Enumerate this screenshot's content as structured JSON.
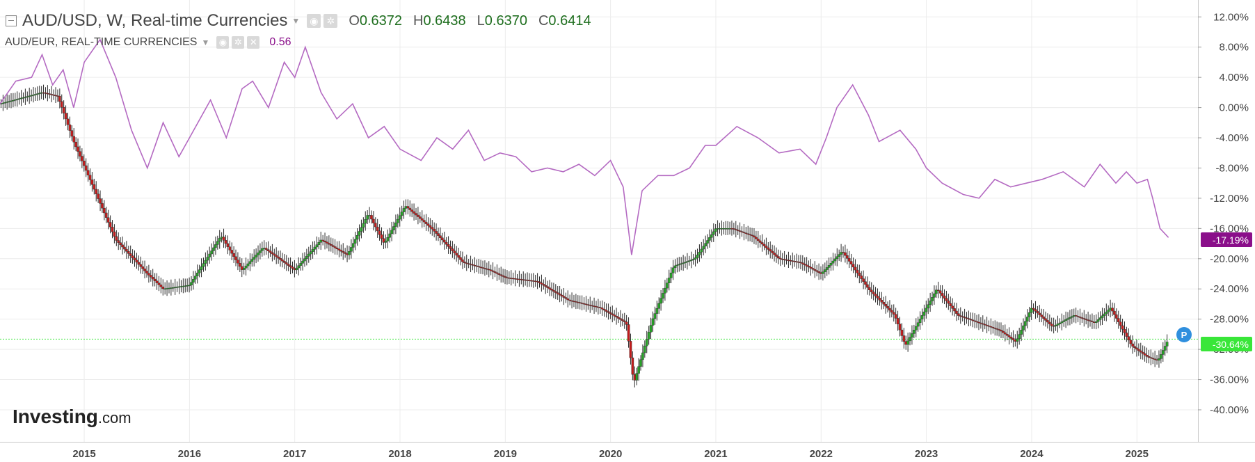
{
  "header": {
    "collapse_icon": "minus-square-icon",
    "main_symbol": "AUD/USD, W, Real-time Currencies",
    "ohlc": [
      {
        "key": "O",
        "value": "0.6372"
      },
      {
        "key": "H",
        "value": "0.6438"
      },
      {
        "key": "L",
        "value": "0.6370"
      },
      {
        "key": "C",
        "value": "0.6414"
      }
    ],
    "compare_symbol": "AUD/EUR, REAL-TIME CURRENCIES",
    "compare_value": "0.56",
    "icons": [
      "eye-icon",
      "gear-icon",
      "close-icon"
    ]
  },
  "brand": {
    "text_bold": "Investing",
    "text_light": ".com"
  },
  "colors": {
    "up": "#27a327",
    "down": "#c41c1c",
    "compare_line": "#b46ac2",
    "compare_badge": "#8a0f8a",
    "current_line": "#39e639",
    "ohlc_text": "#1e6e1e",
    "compare_value_text": "#8a0f8a",
    "grid": "#ececec",
    "pin": "#2f8fde"
  },
  "badges": {
    "compare": "-17.19%",
    "main": "-30.64%",
    "pin": "P"
  },
  "chart_data": {
    "type": "line",
    "title": "",
    "xlabel": "",
    "ylabel": "",
    "x_ticks": [
      "2015",
      "2016",
      "2017",
      "2018",
      "2019",
      "2020",
      "2021",
      "2022",
      "2023",
      "2024",
      "2025"
    ],
    "y_ticks": [
      "12.00%",
      "8.00%",
      "4.00%",
      "0.00%",
      "-4.00%",
      "-8.00%",
      "-12.00%",
      "-16.00%",
      "-20.00%",
      "-24.00%",
      "-28.00%",
      "-32.00%",
      "-36.00%",
      "-40.00%"
    ],
    "ylim": [
      -43.5,
      13.5
    ],
    "xlim": [
      2014.2,
      2025.58
    ],
    "grid": true,
    "series": [
      {
        "name": "AUD/USD",
        "style": "candlestick",
        "x": [
          2014.2,
          2014.6,
          2014.75,
          2014.9,
          2015.1,
          2015.3,
          2015.6,
          2015.75,
          2016.0,
          2016.3,
          2016.5,
          2016.7,
          2017.0,
          2017.25,
          2017.5,
          2017.7,
          2017.85,
          2018.05,
          2018.3,
          2018.6,
          2018.85,
          2019.0,
          2019.3,
          2019.6,
          2019.9,
          2020.15,
          2020.22,
          2020.4,
          2020.6,
          2020.8,
          2021.0,
          2021.15,
          2021.35,
          2021.6,
          2021.8,
          2022.0,
          2022.2,
          2022.45,
          2022.7,
          2022.8,
          2023.0,
          2023.1,
          2023.3,
          2023.5,
          2023.7,
          2023.85,
          2024.0,
          2024.2,
          2024.4,
          2024.6,
          2024.75,
          2024.95,
          2025.1,
          2025.2,
          2025.3
        ],
        "values": [
          0.5,
          2.0,
          1.5,
          -4.5,
          -11.0,
          -17.5,
          -22.0,
          -24.0,
          -23.5,
          -17.0,
          -21.5,
          -18.5,
          -21.5,
          -17.5,
          -19.5,
          -14.0,
          -18.0,
          -13.0,
          -16.0,
          -20.5,
          -21.5,
          -22.5,
          -23.0,
          -25.5,
          -26.5,
          -28.5,
          -36.5,
          -28.0,
          -21.0,
          -20.0,
          -16.0,
          -16.0,
          -17.0,
          -20.0,
          -20.5,
          -22.0,
          -19.0,
          -24.0,
          -27.5,
          -31.5,
          -26.5,
          -24.0,
          -27.5,
          -28.5,
          -29.5,
          -31.0,
          -26.5,
          -29.0,
          -27.5,
          -28.5,
          -26.5,
          -31.5,
          -33.0,
          -33.5,
          -30.64
        ]
      },
      {
        "name": "AUD/EUR",
        "style": "line",
        "x": [
          2014.2,
          2014.35,
          2014.5,
          2014.6,
          2014.7,
          2014.8,
          2014.9,
          2015.0,
          2015.15,
          2015.3,
          2015.45,
          2015.6,
          2015.75,
          2015.9,
          2016.0,
          2016.2,
          2016.35,
          2016.5,
          2016.6,
          2016.75,
          2016.9,
          2017.0,
          2017.1,
          2017.25,
          2017.4,
          2017.55,
          2017.7,
          2017.85,
          2018.0,
          2018.2,
          2018.35,
          2018.5,
          2018.65,
          2018.8,
          2018.95,
          2019.1,
          2019.25,
          2019.4,
          2019.55,
          2019.7,
          2019.85,
          2020.0,
          2020.12,
          2020.2,
          2020.3,
          2020.45,
          2020.6,
          2020.75,
          2020.9,
          2021.0,
          2021.2,
          2021.4,
          2021.6,
          2021.8,
          2021.95,
          2022.05,
          2022.15,
          2022.3,
          2022.45,
          2022.55,
          2022.75,
          2022.9,
          2023.0,
          2023.15,
          2023.35,
          2023.5,
          2023.65,
          2023.8,
          2023.95,
          2024.1,
          2024.3,
          2024.5,
          2024.65,
          2024.8,
          2024.9,
          2025.0,
          2025.1,
          2025.15,
          2025.22,
          2025.3
        ],
        "values": [
          0.5,
          3.5,
          4.0,
          7.0,
          3.0,
          5.0,
          0.0,
          6.0,
          9.0,
          4.0,
          -3.0,
          -8.0,
          -2.0,
          -6.5,
          -4.0,
          1.0,
          -4.0,
          2.5,
          3.5,
          0.0,
          6.0,
          4.0,
          8.0,
          2.0,
          -1.5,
          0.5,
          -4.0,
          -2.5,
          -5.5,
          -7.0,
          -4.0,
          -5.5,
          -3.0,
          -7.0,
          -6.0,
          -6.5,
          -8.5,
          -8.0,
          -8.5,
          -7.5,
          -9.0,
          -7.0,
          -10.5,
          -19.5,
          -11.0,
          -9.0,
          -9.0,
          -8.0,
          -5.0,
          -5.0,
          -2.5,
          -4.0,
          -6.0,
          -5.5,
          -7.5,
          -4.0,
          0.0,
          3.0,
          -1.0,
          -4.5,
          -3.0,
          -5.5,
          -8.0,
          -10.0,
          -11.5,
          -12.0,
          -9.5,
          -10.5,
          -10.0,
          -9.5,
          -8.5,
          -10.5,
          -7.5,
          -10.0,
          -8.5,
          -10.0,
          -9.5,
          -12.0,
          -16.0,
          -17.19
        ]
      }
    ]
  }
}
